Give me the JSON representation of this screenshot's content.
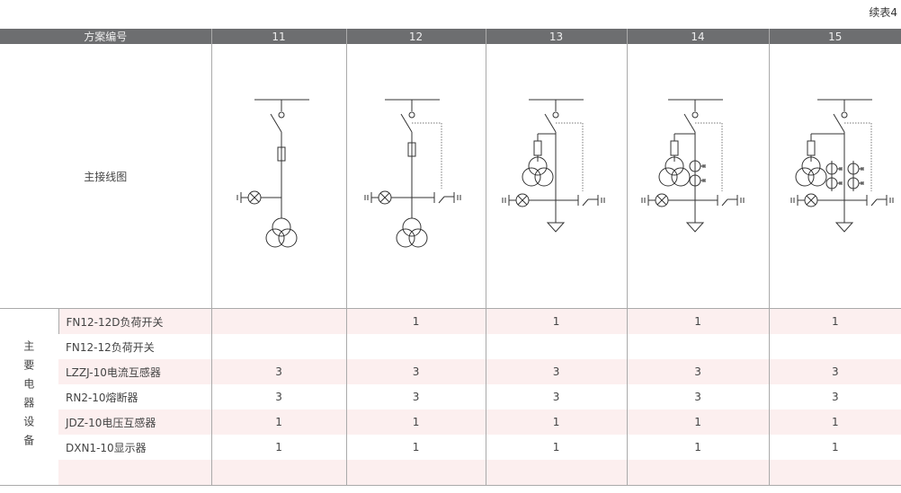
{
  "continued_label": "续表4",
  "header": {
    "label": "方案编号",
    "schemes": [
      "11",
      "12",
      "13",
      "14",
      "15"
    ]
  },
  "diagram_row_label": "主接线图",
  "group_label": "主要电器设备",
  "rows": [
    {
      "name": "FN12-12D负荷开关",
      "values": [
        "",
        "1",
        "1",
        "1",
        "1"
      ]
    },
    {
      "name": "FN12-12负荷开关",
      "values": [
        "",
        "",
        "",
        "",
        ""
      ]
    },
    {
      "name": "LZZJ-10电流互感器",
      "values": [
        "3",
        "3",
        "3",
        "3",
        "3"
      ]
    },
    {
      "name": "RN2-10熔断器",
      "values": [
        "3",
        "3",
        "3",
        "3",
        "3"
      ]
    },
    {
      "name": "JDZ-10电压互感器",
      "values": [
        "1",
        "1",
        "1",
        "1",
        "1"
      ]
    },
    {
      "name": "DXN1-10显示器",
      "values": [
        "1",
        "1",
        "1",
        "1",
        "1"
      ]
    },
    {
      "name": "",
      "values": [
        "",
        "",
        "",
        "",
        ""
      ]
    }
  ],
  "colors": {
    "header_bg": "#6d6e70",
    "row_tint": "#fcefef"
  }
}
